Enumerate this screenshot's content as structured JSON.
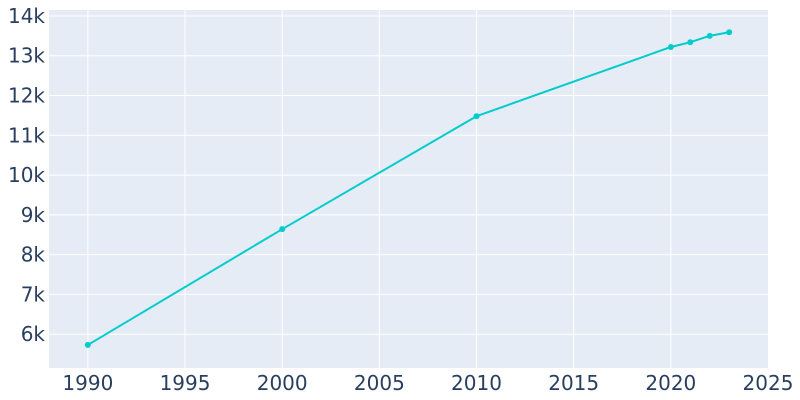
{
  "chart_data": {
    "type": "line",
    "title": "",
    "xlabel": "",
    "ylabel": "",
    "xlim": [
      1988,
      2025
    ],
    "ylim": [
      5150,
      14150
    ],
    "x_ticks": [
      1990,
      1995,
      2000,
      2005,
      2010,
      2015,
      2020,
      2025
    ],
    "x_tick_labels": [
      "1990",
      "1995",
      "2000",
      "2005",
      "2010",
      "2015",
      "2020",
      "2025"
    ],
    "y_ticks": [
      6000,
      7000,
      8000,
      9000,
      10000,
      11000,
      12000,
      13000,
      14000
    ],
    "y_tick_labels": [
      "6k",
      "7k",
      "8k",
      "9k",
      "10k",
      "11k",
      "12k",
      "13k",
      "14k"
    ],
    "grid": true,
    "series": [
      {
        "x": [
          1990,
          2000,
          2010,
          2020,
          2021,
          2022,
          2023
        ],
        "values": [
          5730,
          8640,
          11480,
          13220,
          13340,
          13500,
          13590
        ]
      }
    ],
    "colors": {
      "line": "#00cccc",
      "plot_background": "#e5ecf6",
      "grid": "#ffffff",
      "text": "#2a3f5f"
    }
  }
}
